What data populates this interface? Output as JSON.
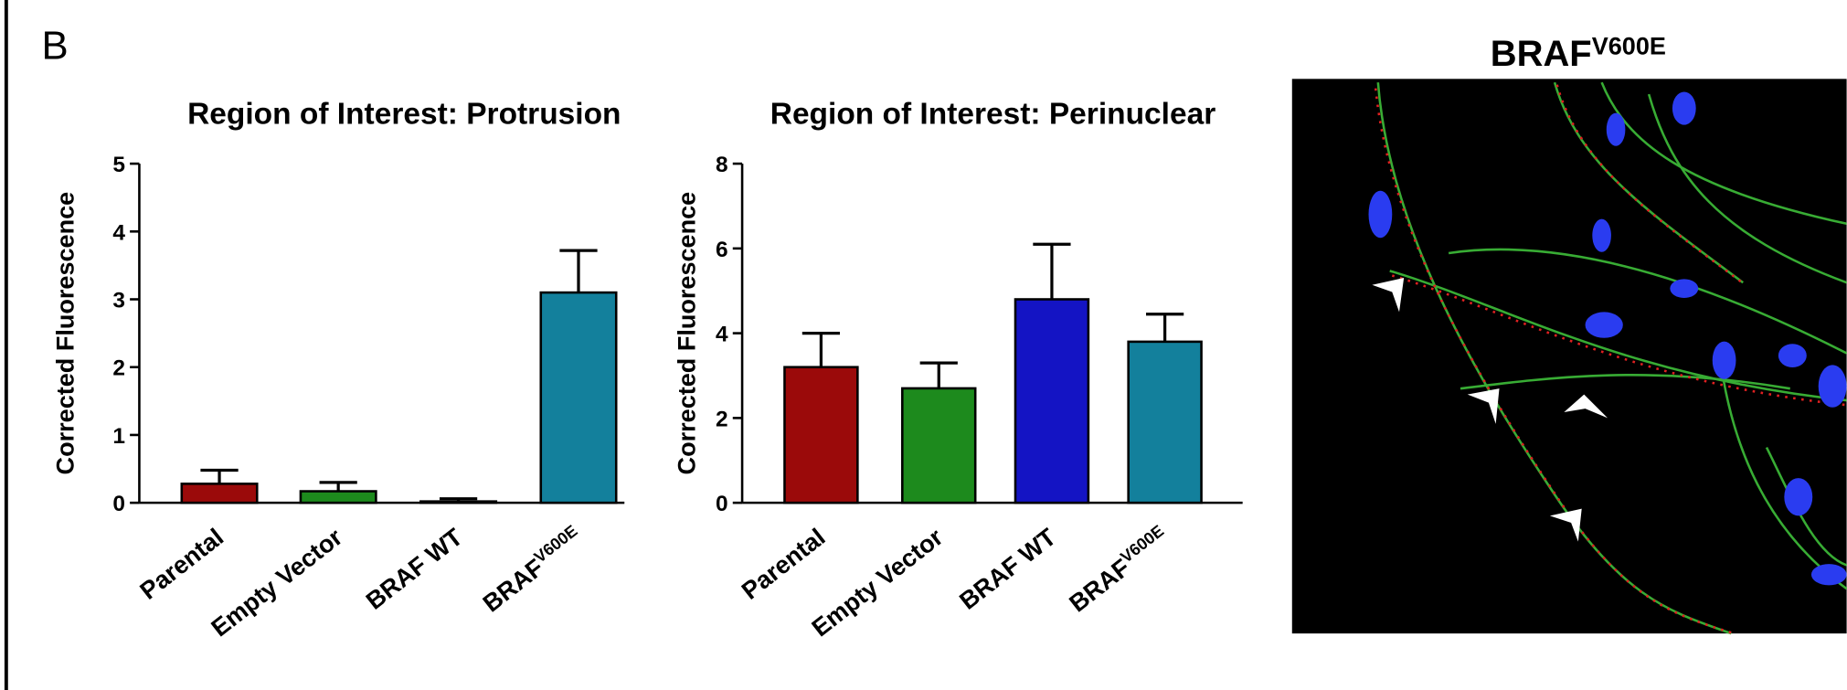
{
  "panel_label": "B",
  "image_title": {
    "base": "BRAF",
    "sup": "V600E"
  },
  "chart_data": [
    {
      "type": "bar",
      "title": "Region of Interest: Protrusion",
      "y_label": "Corrected Fluorescence",
      "categories": [
        "Parental",
        "Empty Vector",
        "BRAF WT",
        {
          "base": "BRAF",
          "sup": "V600E"
        }
      ],
      "values": [
        0.28,
        0.17,
        0.02,
        3.1
      ],
      "errors": [
        0.2,
        0.13,
        0.04,
        0.62
      ],
      "colors": [
        "#9b0a0a",
        "#1d8a1d",
        "#1414c4",
        "#13809c"
      ],
      "ylim": [
        0,
        5
      ],
      "yticks": [
        0,
        1,
        2,
        3,
        4,
        5
      ]
    },
    {
      "type": "bar",
      "title": "Region of Interest: Perinuclear",
      "y_label": "Corrected Fluorescence",
      "categories": [
        "Parental",
        "Empty Vector",
        "BRAF WT",
        {
          "base": "BRAF",
          "sup": "V600E"
        }
      ],
      "values": [
        3.2,
        2.7,
        4.8,
        3.8
      ],
      "errors": [
        0.8,
        0.6,
        1.3,
        0.65
      ],
      "colors": [
        "#9b0a0a",
        "#1d8a1d",
        "#1414c4",
        "#13809c"
      ],
      "ylim": [
        0,
        8
      ],
      "yticks": [
        0,
        2,
        4,
        6,
        8
      ]
    }
  ]
}
